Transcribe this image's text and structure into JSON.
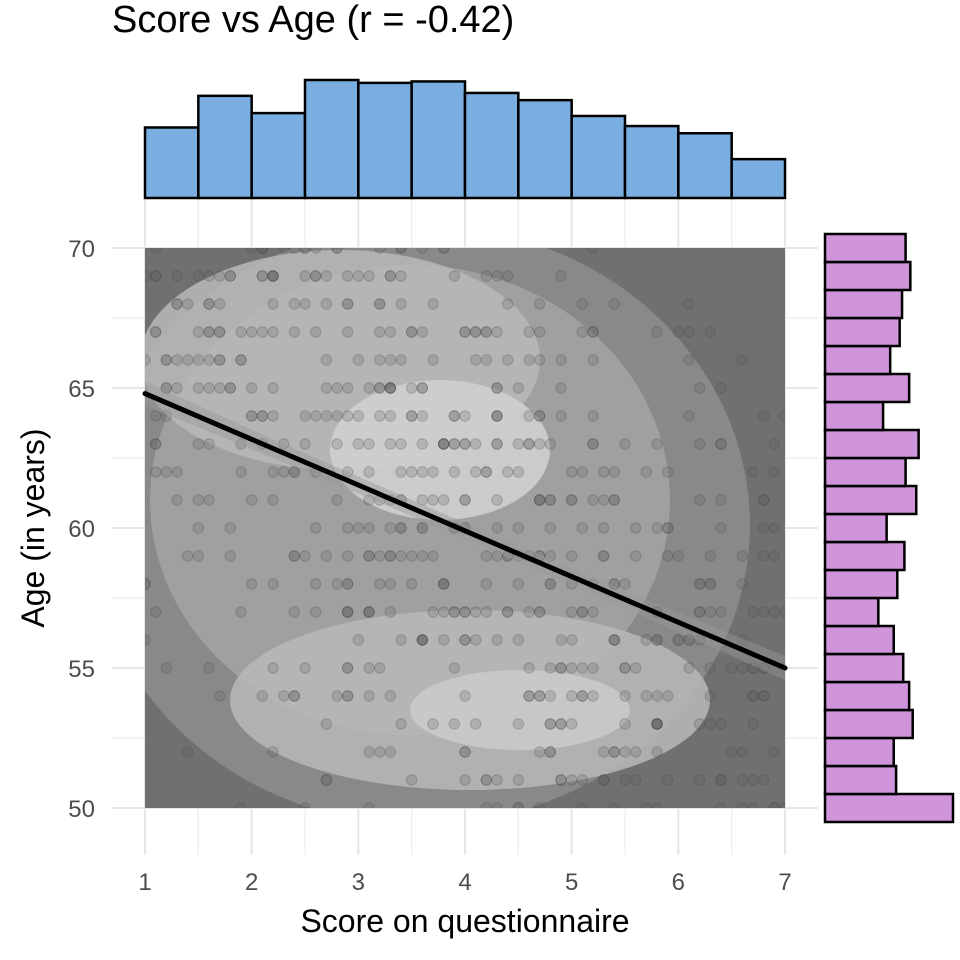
{
  "chart_data": {
    "type": "scatter",
    "title": "Score vs Age (r = -0.42)",
    "xlabel": "Score on questionnaire",
    "ylabel": "Age (in years)",
    "xlim": [
      1,
      7
    ],
    "ylim": [
      50,
      70
    ],
    "x_ticks": [
      1,
      2,
      3,
      4,
      5,
      6,
      7
    ],
    "y_ticks": [
      50,
      55,
      60,
      65,
      70
    ],
    "grid": true,
    "correlation": -0.42,
    "regression_line": {
      "x": [
        1,
        7
      ],
      "y": [
        64.8,
        55.0
      ]
    },
    "density_background": true,
    "marginal_x_histogram": {
      "color": "#7aaee0",
      "bin_edges": [
        1,
        1.5,
        2,
        2.5,
        3,
        3.5,
        4,
        4.5,
        5,
        5.5,
        6,
        6.5,
        7
      ],
      "counts": [
        49,
        71,
        59,
        82,
        80,
        81,
        73,
        68,
        57,
        50,
        45,
        27
      ]
    },
    "marginal_y_histogram": {
      "color": "#cf94da",
      "bin_edges": [
        49.5,
        50.5,
        51.5,
        52.5,
        53.5,
        54.5,
        55.5,
        56.5,
        57.5,
        58.5,
        59.5,
        60.5,
        61.5,
        62.5,
        63.5,
        64.5,
        65.5,
        66.5,
        67.5,
        68.5,
        69.5,
        70.5
      ],
      "counts": [
        108,
        60,
        58,
        74,
        71,
        66,
        58,
        45,
        61,
        67,
        52,
        77,
        68,
        79,
        49,
        71,
        55,
        63,
        65,
        72,
        68
      ]
    }
  }
}
